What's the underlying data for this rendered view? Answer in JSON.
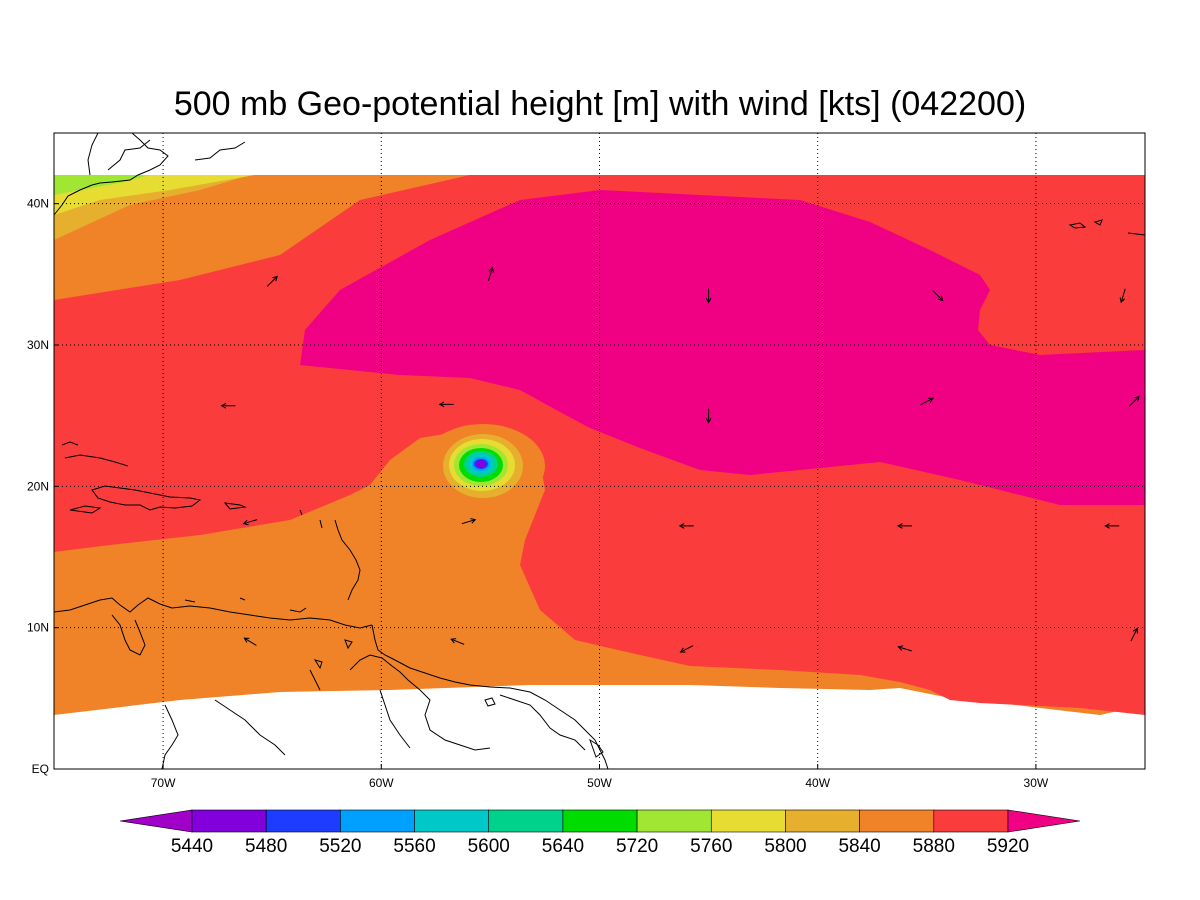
{
  "map": {
    "title": "500 mb Geo-potential height [m] with wind [kts] (042200)",
    "lon_range": [
      -75,
      -25
    ],
    "lat_range": [
      0,
      45
    ],
    "data_lat_max": 42,
    "x_ticks": [
      {
        "lon": -70,
        "label": "70W"
      },
      {
        "lon": -60,
        "label": "60W"
      },
      {
        "lon": -50,
        "label": "50W"
      },
      {
        "lon": -40,
        "label": "40W"
      },
      {
        "lon": -30,
        "label": "30W"
      }
    ],
    "y_ticks": [
      {
        "lat": 0,
        "label": "EQ"
      },
      {
        "lat": 10,
        "label": "10N"
      },
      {
        "lat": 20,
        "label": "20N"
      },
      {
        "lat": 30,
        "label": "30N"
      },
      {
        "lat": 40,
        "label": "40N"
      }
    ],
    "colorbar": {
      "colors": [
        "#a000c8",
        "#8200dc",
        "#1e3cff",
        "#00a0ff",
        "#00c8c8",
        "#00d28c",
        "#00dc00",
        "#a0e632",
        "#e6dc32",
        "#e6af2d",
        "#f08228",
        "#fa3c3c",
        "#f00082"
      ],
      "labels": [
        "5440",
        "5480",
        "5520",
        "5560",
        "5600",
        "5640",
        "5720",
        "5760",
        "5800",
        "5840",
        "5880",
        "5920"
      ]
    },
    "regions": [
      {
        "name": "ridge-core-5920",
        "color": "#f00082"
      },
      {
        "name": "band-5880",
        "color": "#fa3c3c"
      },
      {
        "name": "band-5840",
        "color": "#f08228"
      },
      {
        "name": "low-center",
        "color": "#a000c8"
      }
    ],
    "winds": [
      {
        "lon": -65.0,
        "lat": 34.5,
        "u": 1,
        "v": 1
      },
      {
        "lon": -55.0,
        "lat": 35.0,
        "u": 0.3,
        "v": 1
      },
      {
        "lon": -45.0,
        "lat": 33.5,
        "u": 0,
        "v": -1
      },
      {
        "lon": -34.5,
        "lat": 33.5,
        "u": 1,
        "v": -1
      },
      {
        "lon": -26.0,
        "lat": 33.5,
        "u": -0.3,
        "v": -1
      },
      {
        "lon": -67.0,
        "lat": 25.7,
        "u": -1,
        "v": 0
      },
      {
        "lon": -57.0,
        "lat": 25.8,
        "u": -1,
        "v": 0
      },
      {
        "lon": -45.0,
        "lat": 25.0,
        "u": 0,
        "v": -1
      },
      {
        "lon": -35.0,
        "lat": 26.0,
        "u": 1,
        "v": 0.5
      },
      {
        "lon": -25.5,
        "lat": 26.0,
        "u": 1,
        "v": 1
      },
      {
        "lon": -66.0,
        "lat": 17.5,
        "u": -1,
        "v": -0.3
      },
      {
        "lon": -56.0,
        "lat": 17.5,
        "u": 1,
        "v": 0.3
      },
      {
        "lon": -46.0,
        "lat": 17.2,
        "u": -1,
        "v": 0
      },
      {
        "lon": -36.0,
        "lat": 17.2,
        "u": -1,
        "v": 0
      },
      {
        "lon": -26.5,
        "lat": 17.2,
        "u": -1,
        "v": 0
      },
      {
        "lon": -66.0,
        "lat": 9.0,
        "u": -1,
        "v": 0.6
      },
      {
        "lon": -56.5,
        "lat": 9.0,
        "u": -1,
        "v": 0.4
      },
      {
        "lon": -46.0,
        "lat": 8.5,
        "u": -1,
        "v": -0.5
      },
      {
        "lon": -36.0,
        "lat": 8.5,
        "u": -1,
        "v": 0.3
      },
      {
        "lon": -25.5,
        "lat": 9.5,
        "u": 0.5,
        "v": 1
      }
    ]
  }
}
